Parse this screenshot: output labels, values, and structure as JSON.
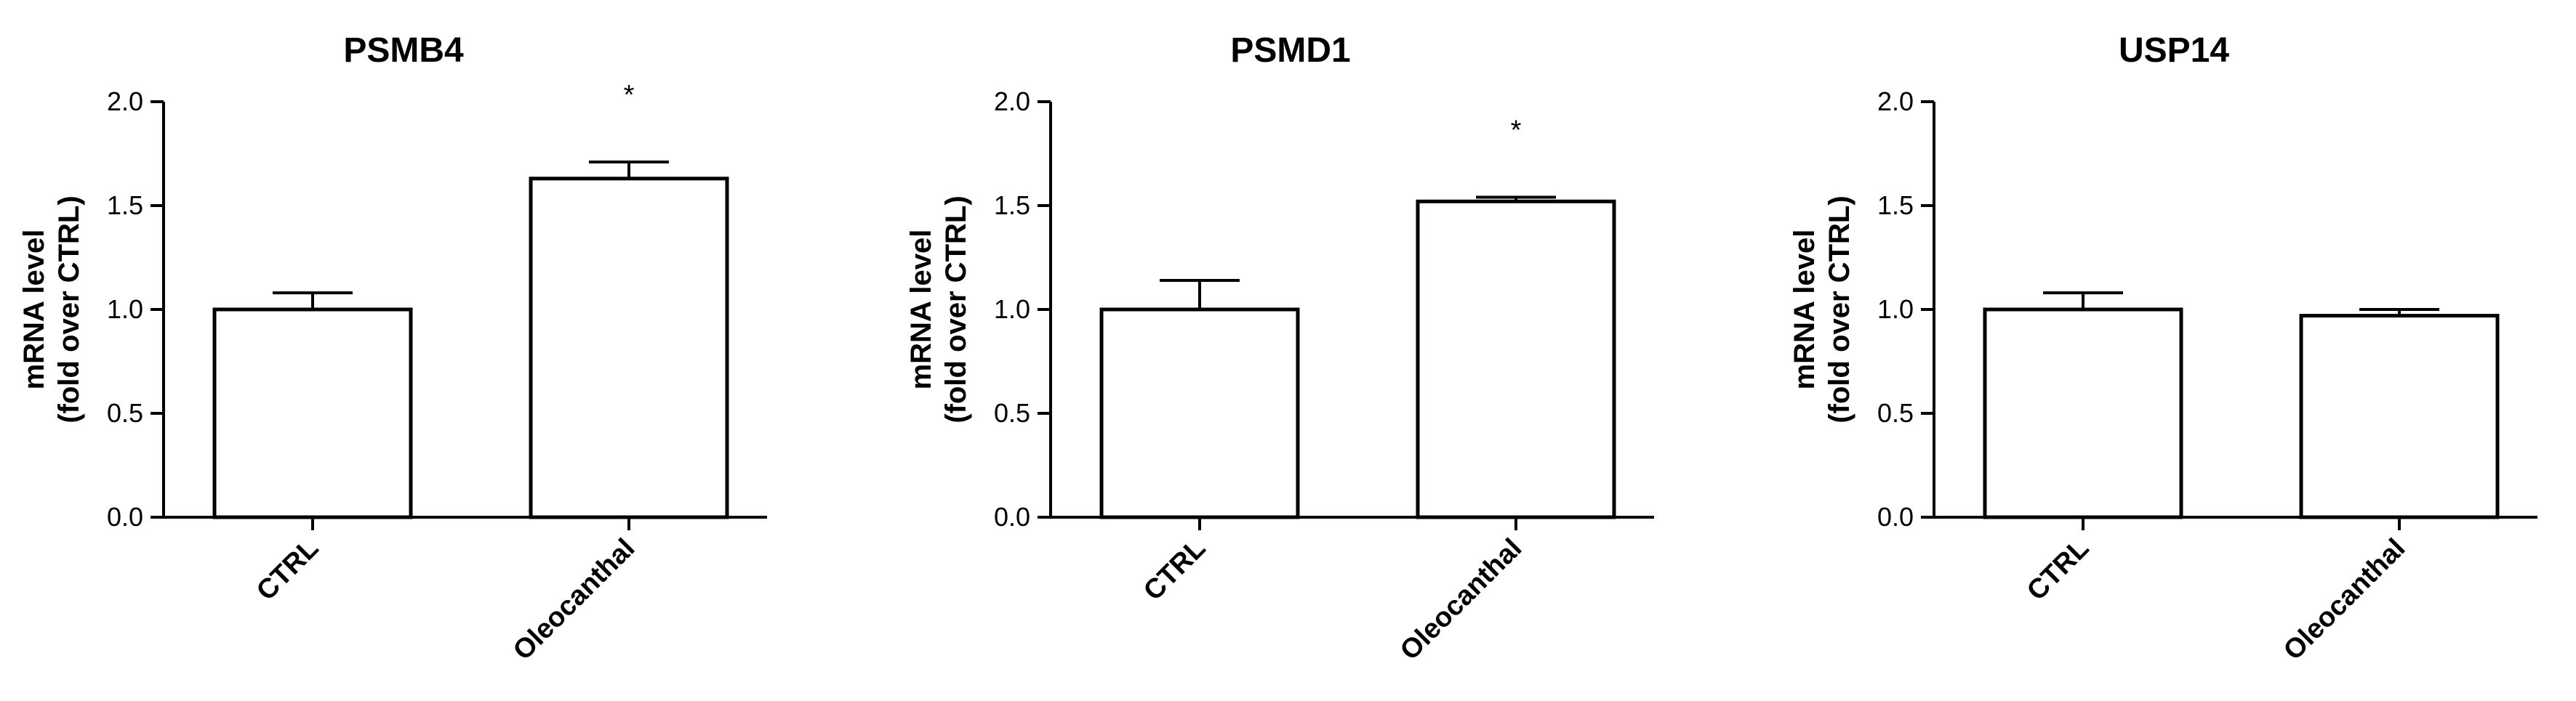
{
  "chart_data": [
    {
      "type": "bar",
      "title": "PSMB4",
      "ylabel": [
        "mRNA level",
        "(fold over CTRL)"
      ],
      "categories": [
        "CTRL",
        "Oleocanthal"
      ],
      "values": [
        1.0,
        1.63
      ],
      "errors": [
        0.08,
        0.08
      ],
      "annotations": [
        "",
        "*"
      ],
      "ylim": [
        0,
        2.0
      ],
      "yticks": [
        "0.0",
        "0.5",
        "1.0",
        "1.5",
        "2.0"
      ],
      "grid": false,
      "legend": "none"
    },
    {
      "type": "bar",
      "title": "PSMD1",
      "ylabel": [
        "mRNA level",
        "(fold over CTRL)"
      ],
      "categories": [
        "CTRL",
        "Oleocanthal"
      ],
      "values": [
        1.0,
        1.52
      ],
      "errors": [
        0.14,
        0.02
      ],
      "annotations": [
        "",
        "*"
      ],
      "ylim": [
        0,
        2.0
      ],
      "yticks": [
        "0.0",
        "0.5",
        "1.0",
        "1.5",
        "2.0"
      ],
      "grid": false,
      "legend": "none"
    },
    {
      "type": "bar",
      "title": "USP14",
      "ylabel": [
        "mRNA level",
        "(fold over CTRL)"
      ],
      "categories": [
        "CTRL",
        "Oleocanthal"
      ],
      "values": [
        1.0,
        0.97
      ],
      "errors": [
        0.08,
        0.03
      ],
      "annotations": [
        "",
        ""
      ],
      "ylim": [
        0,
        2.0
      ],
      "yticks": [
        "0.0",
        "0.5",
        "1.0",
        "1.5",
        "2.0"
      ],
      "grid": false,
      "legend": "none"
    }
  ],
  "colors": {
    "bar_fill": "#ffffff",
    "stroke": "#000000"
  }
}
